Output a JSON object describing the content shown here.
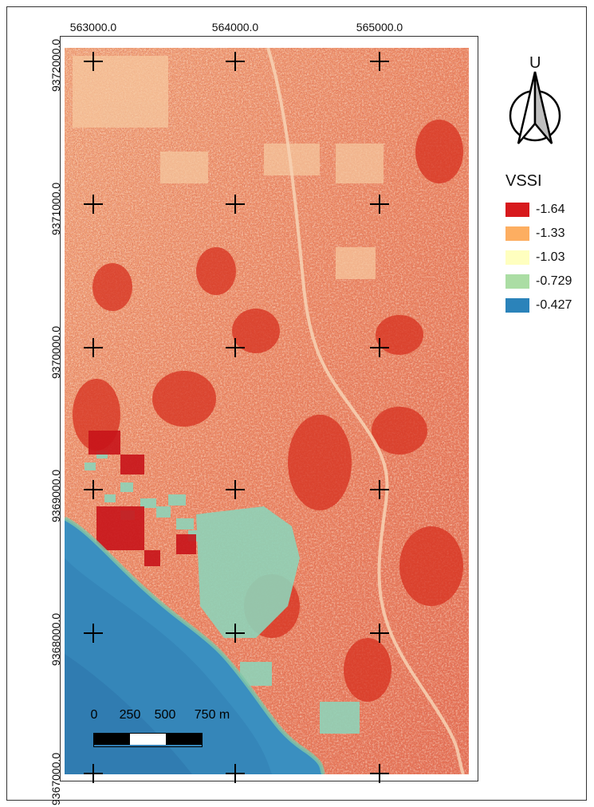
{
  "x_labels": [
    "563000.0",
    "564000.0",
    "565000.0"
  ],
  "y_labels": [
    "9372000.0",
    "9371000.0",
    "9370000.0",
    "9369000.0",
    "9368000.0",
    "9367000.0"
  ],
  "north_arrow": {
    "letter": "U",
    "icon": "north-arrow-icon"
  },
  "legend": {
    "title": "VSSI",
    "items": [
      {
        "label": "-1.64",
        "color": "#d7191c"
      },
      {
        "label": "-1.33",
        "color": "#fdae61"
      },
      {
        "label": "-1.03",
        "color": "#ffffbf"
      },
      {
        "label": "-0.729",
        "color": "#abdda4"
      },
      {
        "label": "-0.427",
        "color": "#2b83ba"
      }
    ]
  },
  "scale_bar": {
    "ticks": [
      "0",
      "250",
      "500",
      "750 m"
    ]
  },
  "colors": {
    "land": "#ef8f68",
    "sea": "#3a8fc0",
    "ponds": "#8fd3b8",
    "urban_dense": "#d7191c"
  }
}
